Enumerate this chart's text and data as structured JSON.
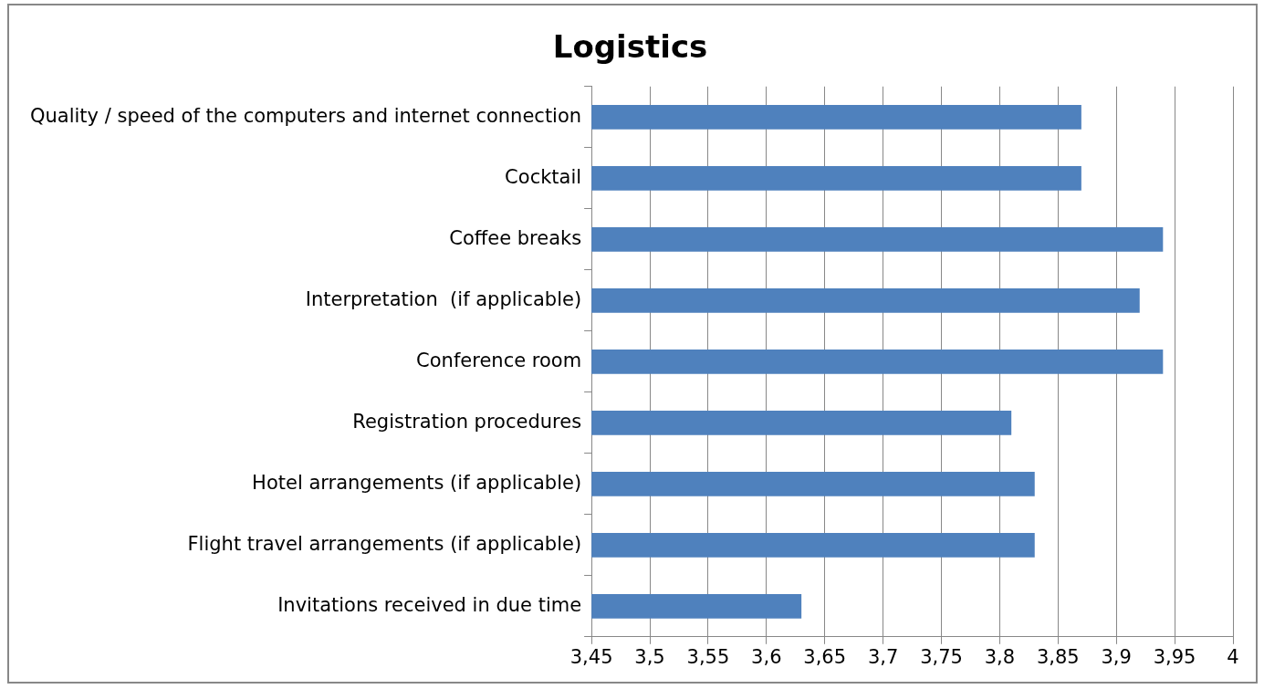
{
  "chart_data": {
    "type": "bar",
    "orientation": "horizontal",
    "title": "Logistics",
    "categories": [
      "Quality / speed of the computers and internet connection",
      "Cocktail",
      "Coffee breaks",
      "Interpretation  (if applicable)",
      "Conference room",
      "Registration procedures",
      "Hotel arrangements (if applicable)",
      "Flight travel arrangements (if applicable)",
      "Invitations received in due time"
    ],
    "values": [
      3.87,
      3.87,
      3.94,
      3.92,
      3.94,
      3.81,
      3.83,
      3.83,
      3.63
    ],
    "color": "#4f81bd",
    "xlim": [
      3.45,
      4
    ],
    "xticks": [
      {
        "value": 3.45,
        "label": "3,45"
      },
      {
        "value": 3.5,
        "label": "3,5"
      },
      {
        "value": 3.55,
        "label": "3,55"
      },
      {
        "value": 3.6,
        "label": "3,6"
      },
      {
        "value": 3.65,
        "label": "3,65"
      },
      {
        "value": 3.7,
        "label": "3,7"
      },
      {
        "value": 3.75,
        "label": "3,75"
      },
      {
        "value": 3.8,
        "label": "3,8"
      },
      {
        "value": 3.85,
        "label": "3,85"
      },
      {
        "value": 3.9,
        "label": "3,9"
      },
      {
        "value": 3.95,
        "label": "3,95"
      },
      {
        "value": 4,
        "label": "4"
      }
    ],
    "grid": "x",
    "legend": false
  }
}
